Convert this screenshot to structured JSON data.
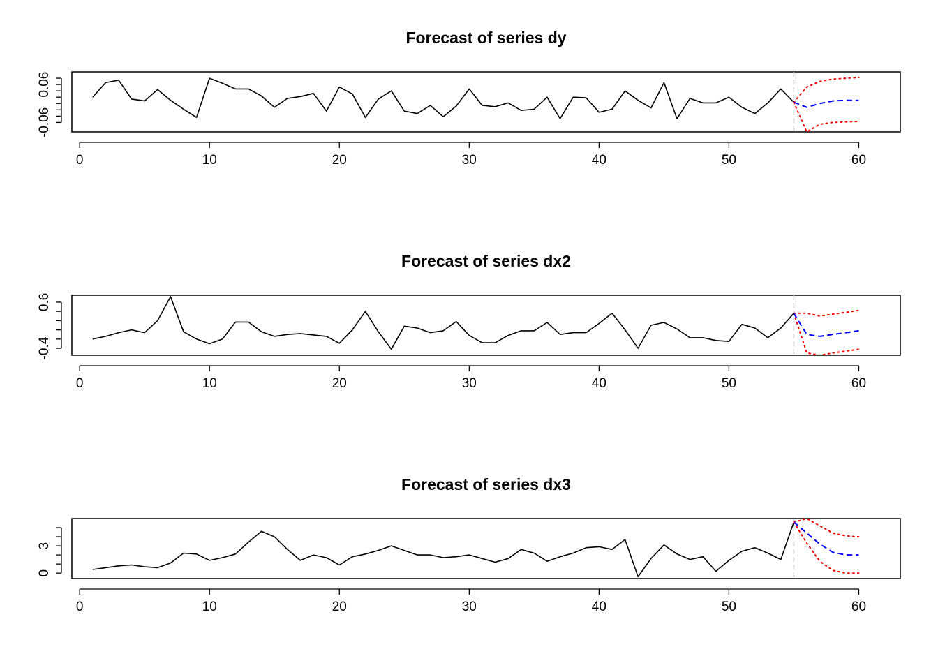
{
  "chart_data": [
    {
      "type": "line",
      "title": "Forecast of series dy",
      "xlabel": "",
      "ylabel": "",
      "xlim": [
        -0.6,
        63.2
      ],
      "ylim": [
        -0.09,
        0.1
      ],
      "x_ticks": [
        0,
        10,
        20,
        30,
        40,
        50,
        60
      ],
      "y_ticks": [
        -0.06,
        0.06
      ],
      "y_minor_ticks": [
        -0.06,
        -0.04,
        -0.02,
        0.0,
        0.02,
        0.04,
        0.06,
        0.08
      ],
      "forecast_origin": 55,
      "observed": {
        "x": [
          1,
          2,
          3,
          4,
          5,
          6,
          7,
          8,
          9,
          10,
          11,
          12,
          13,
          14,
          15,
          16,
          17,
          18,
          19,
          20,
          21,
          22,
          23,
          24,
          25,
          26,
          27,
          28,
          29,
          30,
          31,
          32,
          33,
          34,
          35,
          36,
          37,
          38,
          39,
          40,
          41,
          42,
          43,
          44,
          45,
          46,
          47,
          48,
          49,
          50,
          51,
          52,
          53,
          54,
          55
        ],
        "y": [
          0.02,
          0.066,
          0.074,
          0.014,
          0.008,
          0.044,
          0.01,
          -0.018,
          -0.044,
          0.08,
          0.064,
          0.046,
          0.046,
          0.024,
          -0.012,
          0.016,
          0.022,
          0.032,
          -0.024,
          0.052,
          0.03,
          -0.044,
          0.014,
          0.04,
          -0.024,
          -0.032,
          -0.006,
          -0.042,
          -0.008,
          0.046,
          -0.006,
          -0.01,
          0.002,
          -0.022,
          -0.018,
          0.02,
          -0.048,
          0.02,
          0.018,
          -0.028,
          -0.018,
          0.04,
          0.01,
          -0.014,
          0.066,
          -0.048,
          0.016,
          0.002,
          0.002,
          0.02,
          -0.012,
          -0.032,
          0.002,
          0.046,
          0.004
        ]
      },
      "forecast": {
        "x": [
          55,
          56,
          57,
          58,
          59,
          60
        ],
        "y": [
          0.004,
          -0.012,
          0.0,
          0.008,
          0.01,
          0.01
        ]
      },
      "lower": {
        "x": [
          55,
          56,
          57,
          58,
          59,
          60
        ],
        "y": [
          0.004,
          -0.09,
          -0.066,
          -0.06,
          -0.058,
          -0.057
        ]
      },
      "upper": {
        "x": [
          55,
          56,
          57,
          58,
          59,
          60
        ],
        "y": [
          0.004,
          0.052,
          0.07,
          0.077,
          0.08,
          0.082
        ]
      },
      "grid": false,
      "colors": {
        "observed": "#000000",
        "forecast": "#0000ff",
        "interval": "#ff0000",
        "origin": "#bebebe"
      }
    },
    {
      "type": "line",
      "title": "Forecast of series dx2",
      "xlabel": "",
      "ylabel": "",
      "xlim": [
        -0.6,
        63.2
      ],
      "ylim": [
        -0.55,
        0.75
      ],
      "x_ticks": [
        0,
        10,
        20,
        30,
        40,
        50,
        60
      ],
      "y_ticks": [
        -0.4,
        0.6
      ],
      "y_minor_ticks": [
        -0.4,
        -0.2,
        0.0,
        0.2,
        0.4,
        0.6
      ],
      "forecast_origin": 55,
      "observed": {
        "x": [
          1,
          2,
          3,
          4,
          5,
          6,
          7,
          8,
          9,
          10,
          11,
          12,
          13,
          14,
          15,
          16,
          17,
          18,
          19,
          20,
          21,
          22,
          23,
          24,
          25,
          26,
          27,
          28,
          29,
          30,
          31,
          32,
          33,
          34,
          35,
          36,
          37,
          38,
          39,
          40,
          41,
          42,
          43,
          44,
          45,
          46,
          47,
          48,
          49,
          50,
          51,
          52,
          53,
          54,
          55
        ],
        "y": [
          -0.2,
          -0.14,
          -0.06,
          0.0,
          -0.06,
          0.2,
          0.72,
          -0.04,
          -0.2,
          -0.3,
          -0.2,
          0.17,
          0.17,
          -0.04,
          -0.14,
          -0.1,
          -0.08,
          -0.11,
          -0.14,
          -0.29,
          0.0,
          0.4,
          -0.04,
          -0.42,
          0.08,
          0.04,
          -0.06,
          -0.02,
          0.18,
          -0.12,
          -0.28,
          -0.28,
          -0.12,
          -0.02,
          -0.02,
          0.16,
          -0.1,
          -0.06,
          -0.06,
          0.14,
          0.36,
          0.0,
          -0.4,
          0.1,
          0.16,
          0.02,
          -0.17,
          -0.17,
          -0.23,
          -0.25,
          0.12,
          0.04,
          -0.17,
          0.04,
          0.36
        ]
      },
      "forecast": {
        "x": [
          55,
          56,
          57,
          58,
          59,
          60
        ],
        "y": [
          0.36,
          -0.1,
          -0.14,
          -0.1,
          -0.06,
          -0.02
        ]
      },
      "lower": {
        "x": [
          55,
          56,
          57,
          58,
          59,
          60
        ],
        "y": [
          0.36,
          -0.5,
          -0.55,
          -0.5,
          -0.46,
          -0.42
        ]
      },
      "upper": {
        "x": [
          55,
          56,
          57,
          58,
          59,
          60
        ],
        "y": [
          0.36,
          0.36,
          0.3,
          0.34,
          0.38,
          0.42
        ]
      },
      "grid": false,
      "colors": {
        "observed": "#000000",
        "forecast": "#0000ff",
        "interval": "#ff0000",
        "origin": "#bebebe"
      }
    },
    {
      "type": "line",
      "title": "Forecast of series dx3",
      "xlabel": "",
      "ylabel": "",
      "xlim": [
        -0.6,
        63.2
      ],
      "ylim": [
        -0.6,
        6.0
      ],
      "x_ticks": [
        0,
        10,
        20,
        30,
        40,
        50,
        60
      ],
      "y_ticks": [
        0,
        3
      ],
      "y_minor_ticks": [
        0,
        1,
        2,
        3,
        4,
        5
      ],
      "forecast_origin": 55,
      "observed": {
        "x": [
          1,
          2,
          3,
          4,
          5,
          6,
          7,
          8,
          9,
          10,
          11,
          12,
          13,
          14,
          15,
          16,
          17,
          18,
          19,
          20,
          21,
          22,
          23,
          24,
          25,
          26,
          27,
          28,
          29,
          30,
          31,
          32,
          33,
          34,
          35,
          36,
          37,
          38,
          39,
          40,
          41,
          42,
          43,
          44,
          45,
          46,
          47,
          48,
          49,
          50,
          51,
          52,
          53,
          54,
          55
        ],
        "y": [
          0.4,
          0.6,
          0.8,
          0.9,
          0.7,
          0.6,
          1.1,
          2.2,
          2.1,
          1.4,
          1.7,
          2.1,
          3.4,
          4.6,
          4.0,
          2.6,
          1.4,
          2.0,
          1.7,
          0.9,
          1.8,
          2.1,
          2.5,
          3.0,
          2.5,
          2.0,
          2.0,
          1.7,
          1.8,
          2.0,
          1.6,
          1.2,
          1.6,
          2.6,
          2.2,
          1.3,
          1.8,
          2.2,
          2.8,
          2.9,
          2.6,
          3.7,
          -0.4,
          1.6,
          3.1,
          2.1,
          1.5,
          1.8,
          0.2,
          1.4,
          2.4,
          2.8,
          2.2,
          1.5,
          5.6
        ]
      },
      "forecast": {
        "x": [
          55,
          56,
          57,
          58,
          59,
          60
        ],
        "y": [
          5.6,
          4.4,
          3.2,
          2.3,
          2.0,
          2.0
        ]
      },
      "lower": {
        "x": [
          55,
          56,
          57,
          58,
          59,
          60
        ],
        "y": [
          5.6,
          3.3,
          1.3,
          0.3,
          0.0,
          0.0
        ]
      },
      "upper": {
        "x": [
          55,
          56,
          57,
          58,
          59,
          60
        ],
        "y": [
          5.6,
          6.0,
          5.2,
          4.4,
          4.1,
          4.0
        ]
      },
      "grid": false,
      "colors": {
        "observed": "#000000",
        "forecast": "#0000ff",
        "interval": "#ff0000",
        "origin": "#bebebe"
      }
    }
  ]
}
